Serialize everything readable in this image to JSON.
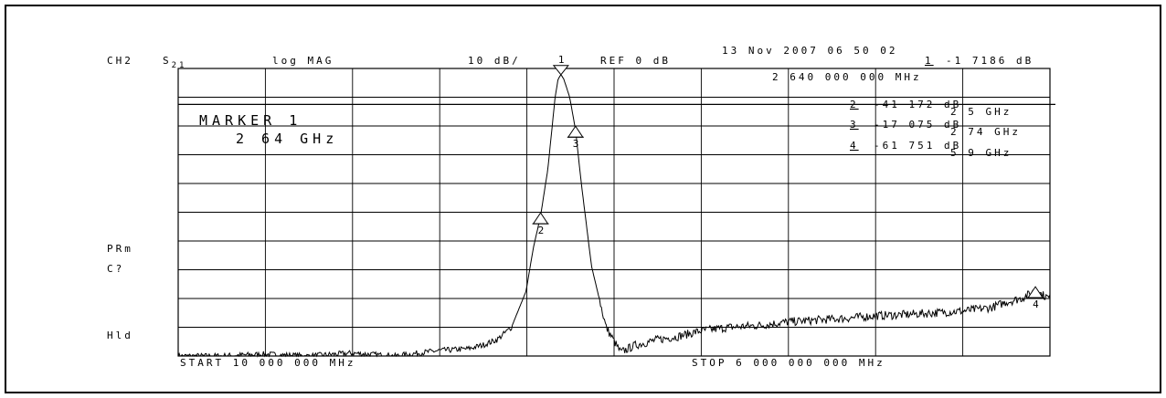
{
  "header": {
    "channel": "CH2",
    "param_main": "S",
    "param_sub": "21",
    "format": "log MAG",
    "scale": "10 dB/",
    "reference": "REF 0 dB",
    "datetime": "13 Nov 2007  06 50 02"
  },
  "active_marker": {
    "index": "1",
    "value": "-1 7186 dB",
    "frequency": "2 640 000 000 MHz"
  },
  "marker_list": [
    {
      "index": "2",
      "value": "-41 172 dB",
      "frequency": "2 5 GHz"
    },
    {
      "index": "3",
      "value": "-17 075 dB",
      "frequency": "2 74 GHz"
    },
    {
      "index": "4",
      "value": "-61 751 dB",
      "frequency": "5 9 GHz"
    }
  ],
  "marker_box": {
    "title": "MARKER 1",
    "value": "2 64 GHz"
  },
  "side_labels": {
    "prm": "PRm",
    "c": "C?",
    "hld": "Hld"
  },
  "footer": {
    "start": "START   10 000 000 MHz",
    "stop": "STOP 6 000 000 000 MHz"
  },
  "chart_data": {
    "type": "line",
    "xlabel": "",
    "ylabel": "",
    "xlim": [
      10,
      6000
    ],
    "ylim": [
      -80,
      0
    ],
    "grid": true,
    "x_unit": "MHz",
    "y_unit": "dB",
    "series": [
      {
        "x": [
          10,
          300,
          600,
          900,
          1200,
          1500,
          1800,
          2000,
          2100,
          2200,
          2300,
          2400,
          2450,
          2500,
          2550,
          2600,
          2620,
          2640,
          2660,
          2700,
          2740,
          2780,
          2850,
          2950,
          3050,
          3150,
          3300,
          3450,
          3600,
          3800,
          4000,
          4200,
          4400,
          4600,
          4800,
          5000,
          5200,
          5400,
          5600,
          5700,
          5800,
          5900,
          6000
        ],
        "y": [
          -80,
          -80,
          -79.5,
          -80,
          -79.2,
          -80,
          -78.5,
          -78,
          -77,
          -75.5,
          -72,
          -62,
          -50,
          -41,
          -28,
          -8,
          -3,
          -1.7,
          -3,
          -8,
          -17,
          -32,
          -55,
          -72,
          -79,
          -77,
          -75.5,
          -74.5,
          -73,
          -72,
          -71.5,
          -70.5,
          -70,
          -69.5,
          -68.8,
          -68.5,
          -68,
          -67.5,
          -66.5,
          -65,
          -64,
          -62,
          -64
        ]
      }
    ],
    "markers": [
      {
        "index": "1",
        "x": 2640,
        "y": -1.7186
      },
      {
        "index": "2",
        "x": 2500,
        "y": -41.172
      },
      {
        "index": "3",
        "x": 2740,
        "y": -17.075
      },
      {
        "index": "4",
        "x": 5900,
        "y": -61.751
      }
    ]
  }
}
